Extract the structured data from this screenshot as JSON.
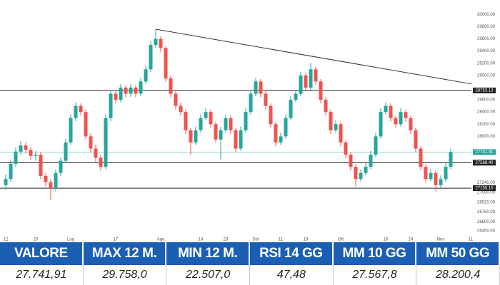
{
  "chart_data": {
    "type": "candlestick",
    "categories": [
      "12",
      null,
      null,
      null,
      null,
      null,
      "20",
      null,
      null,
      null,
      null,
      null,
      null,
      "Lug",
      null,
      null,
      null,
      null,
      null,
      null,
      null,
      null,
      "17",
      null,
      null,
      null,
      null,
      null,
      null,
      null,
      null,
      "Ago",
      null,
      null,
      null,
      null,
      null,
      null,
      null,
      "14",
      null,
      null,
      null,
      null,
      "23",
      null,
      null,
      null,
      null,
      null,
      "Set",
      null,
      null,
      null,
      null,
      "11",
      null,
      null,
      null,
      null,
      "19",
      null,
      null,
      null,
      null,
      null,
      null,
      "Ott",
      null,
      null,
      null,
      null,
      null,
      null,
      null,
      null,
      "16",
      null,
      null,
      null,
      null,
      "24",
      null,
      null,
      null,
      null,
      null,
      "Nov",
      null,
      null,
      null,
      null,
      null,
      "11"
    ],
    "open": [
      27200,
      27300,
      27550,
      27750,
      27850,
      27780,
      27680,
      27700,
      27350,
      27250,
      27150,
      27400,
      27600,
      27900,
      28300,
      28500,
      28400,
      28000,
      27800,
      27650,
      27500,
      28300,
      28700,
      28600,
      28800,
      28700,
      28800,
      28700,
      28900,
      29100,
      29500,
      29600,
      29450,
      28950,
      28700,
      28500,
      28400,
      28100,
      27900,
      28100,
      28300,
      28400,
      28200,
      27950,
      28100,
      28300,
      28100,
      27800,
      28100,
      28400,
      28700,
      28900,
      28700,
      28500,
      28200,
      27900,
      28000,
      28300,
      28600,
      28700,
      29000,
      28800,
      29100,
      28900,
      28600,
      28400,
      28100,
      28200,
      27900,
      27700,
      27500,
      27300,
      27400,
      27500,
      27700,
      28000,
      28400,
      28500,
      28300,
      28200,
      28400,
      28300,
      28100,
      27800,
      27500,
      27300,
      27400,
      27200,
      27300,
      27500,
      null,
      null,
      null,
      null
    ],
    "high": [
      27380,
      27620,
      27820,
      27920,
      27900,
      27820,
      27760,
      27740,
      27400,
      27300,
      27460,
      27660,
      27960,
      28360,
      28560,
      28540,
      28440,
      28050,
      27860,
      27700,
      28360,
      28760,
      28740,
      28860,
      28840,
      28860,
      28840,
      28960,
      29160,
      29560,
      29758,
      29640,
      29480,
      29000,
      28740,
      28560,
      28440,
      28140,
      28160,
      28360,
      28460,
      28440,
      28240,
      28160,
      28360,
      28340,
      28140,
      28160,
      28460,
      28760,
      28960,
      28940,
      28740,
      28540,
      28240,
      28060,
      28360,
      28660,
      28760,
      29060,
      29040,
      29200,
      29140,
      28940,
      28640,
      28440,
      28260,
      28240,
      27940,
      27740,
      27540,
      27460,
      27560,
      27760,
      28060,
      28460,
      28560,
      28540,
      28340,
      28460,
      28440,
      28340,
      28140,
      27840,
      27540,
      27460,
      27440,
      27360,
      27560,
      27800,
      null,
      null,
      null,
      null
    ],
    "low": [
      27120,
      27250,
      27500,
      27700,
      27720,
      27620,
      27600,
      27300,
      27180,
      26950,
      27100,
      27350,
      27560,
      27860,
      28250,
      28340,
      27950,
      27740,
      27580,
      27440,
      27460,
      28250,
      28540,
      28560,
      28640,
      28650,
      28640,
      28660,
      28860,
      29060,
      29450,
      29380,
      28900,
      28640,
      28440,
      28340,
      28040,
      27700,
      27860,
      28060,
      28260,
      28140,
      27900,
      27620,
      28060,
      28040,
      27740,
      27760,
      28060,
      28360,
      28660,
      28640,
      28440,
      28140,
      27840,
      27860,
      27960,
      28260,
      28560,
      28660,
      28740,
      28760,
      28840,
      28540,
      28340,
      28040,
      28060,
      27840,
      27640,
      27440,
      27180,
      27260,
      27360,
      27460,
      27660,
      27960,
      28360,
      28240,
      28140,
      28160,
      28240,
      28040,
      27740,
      27440,
      27240,
      27260,
      27100,
      27160,
      27260,
      27460,
      null,
      null,
      null,
      null
    ],
    "close": [
      27300,
      27550,
      27750,
      27850,
      27780,
      27680,
      27700,
      27350,
      27250,
      27150,
      27400,
      27600,
      27900,
      28300,
      28500,
      28400,
      28000,
      27800,
      27650,
      27500,
      28300,
      28700,
      28600,
      28800,
      28700,
      28800,
      28700,
      28900,
      29100,
      29500,
      29600,
      29450,
      28950,
      28700,
      28500,
      28400,
      28100,
      27900,
      28100,
      28300,
      28400,
      28200,
      27950,
      28100,
      28300,
      28100,
      27800,
      28100,
      28400,
      28700,
      28900,
      28700,
      28500,
      28200,
      27900,
      28000,
      28300,
      28600,
      28700,
      29000,
      28800,
      29100,
      28900,
      28600,
      28400,
      28100,
      28200,
      27900,
      27700,
      27500,
      27300,
      27400,
      27500,
      27700,
      28000,
      28400,
      28500,
      28300,
      28200,
      28400,
      28300,
      28100,
      27800,
      27500,
      27300,
      27400,
      27200,
      27300,
      27500,
      27742,
      null,
      null,
      null,
      null
    ],
    "up_color": "#26a69a",
    "down_color": "#ef5350",
    "ylim": [
      26380,
      30120
    ],
    "yticks": [
      {
        "value": 30000,
        "label": "30000.00"
      },
      {
        "value": 29800,
        "label": "29800.00"
      },
      {
        "value": 29600,
        "label": "29600.00"
      },
      {
        "value": 29400,
        "label": "29400.00"
      },
      {
        "value": 29200,
        "label": "29200.00"
      },
      {
        "value": 29000,
        "label": "29000.00"
      },
      {
        "value": 28600,
        "label": "28600.00"
      },
      {
        "value": 28400,
        "label": "28400.00"
      },
      {
        "value": 28200,
        "label": "28200.00"
      },
      {
        "value": 28000,
        "label": "28000.00"
      },
      {
        "value": 27240,
        "label": "27240.00"
      },
      {
        "value": 27080,
        "label": "27080.00"
      },
      {
        "value": 26920,
        "label": "26920.00"
      },
      {
        "value": 26760,
        "label": "26760.00"
      },
      {
        "value": 26600,
        "label": "26600.00"
      },
      {
        "value": 26450,
        "label": "26450.00"
      }
    ],
    "levels": [
      {
        "value": 28753.13,
        "label": "28753.13",
        "color": "#222"
      },
      {
        "value": 27741.91,
        "label": "27741.91",
        "color": "#26a69a"
      },
      {
        "value": 27568.4,
        "label": "27568.40",
        "color": "#222"
      },
      {
        "value": 27150.15,
        "label": "27150.15",
        "color": "#222"
      }
    ],
    "trendline": [
      29758,
      28860
    ]
  },
  "table": {
    "headers": [
      "VALORE",
      "MAX 12 M.",
      "MIN 12 M.",
      "RSI 14 GG",
      "MM 10 GG",
      "MM 50 GG"
    ],
    "values": [
      "27.741,91",
      "29.758,0",
      "22.507,0",
      "47,48",
      "27.567,8",
      "28.200,4"
    ]
  }
}
